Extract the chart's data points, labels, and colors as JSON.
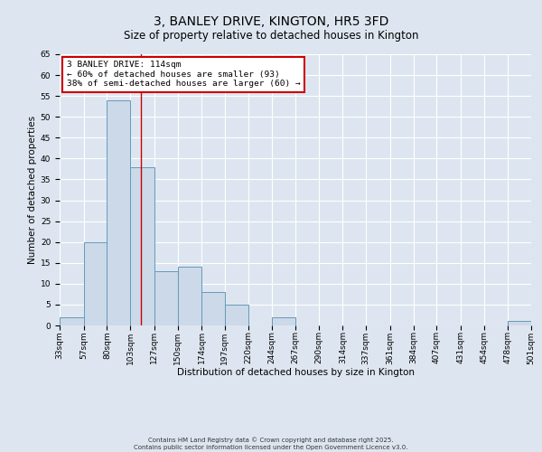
{
  "title": "3, BANLEY DRIVE, KINGTON, HR5 3FD",
  "subtitle": "Size of property relative to detached houses in Kington",
  "xlabel": "Distribution of detached houses by size in Kington",
  "ylabel": "Number of detached properties",
  "bar_edges": [
    33,
    57,
    80,
    103,
    127,
    150,
    174,
    197,
    220,
    244,
    267,
    290,
    314,
    337,
    361,
    384,
    407,
    431,
    454,
    478,
    501
  ],
  "bar_heights": [
    2,
    20,
    54,
    38,
    13,
    14,
    8,
    5,
    0,
    2,
    0,
    0,
    0,
    0,
    0,
    0,
    0,
    0,
    0,
    1
  ],
  "bar_color": "#ccd9e8",
  "bar_edge_color": "#6699bb",
  "red_line_x": 114,
  "annotation_text": "3 BANLEY DRIVE: 114sqm\n← 60% of detached houses are smaller (93)\n38% of semi-detached houses are larger (60) →",
  "annotation_box_color": "#ffffff",
  "annotation_box_edge_color": "#cc0000",
  "ylim": [
    0,
    65
  ],
  "yticks": [
    0,
    5,
    10,
    15,
    20,
    25,
    30,
    35,
    40,
    45,
    50,
    55,
    60,
    65
  ],
  "background_color": "#dde6f0",
  "grid_color": "#ffffff",
  "footer_line1": "Contains HM Land Registry data © Crown copyright and database right 2025.",
  "footer_line2": "Contains public sector information licensed under the Open Government Licence v3.0.",
  "title_fontsize": 10,
  "subtitle_fontsize": 8.5,
  "tick_label_fontsize": 6.5,
  "axis_label_fontsize": 7.5,
  "ylabel_fontsize": 7.5
}
